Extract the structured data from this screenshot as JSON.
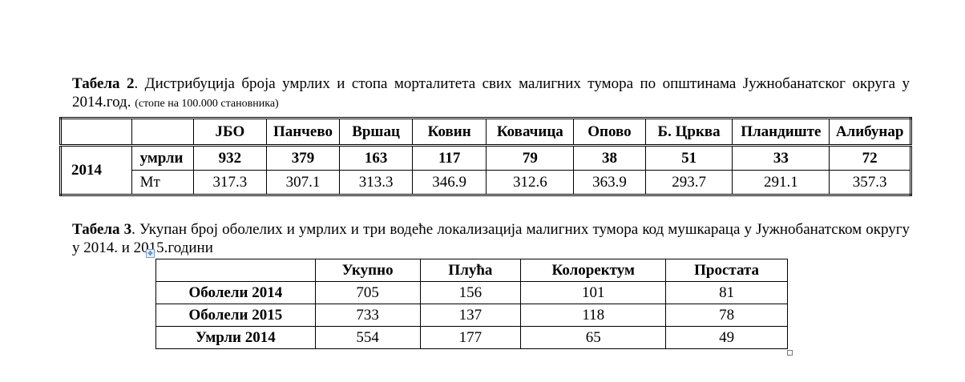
{
  "table2": {
    "caption_label": "Табела 2",
    "caption_text": ". Дистрибуција броја умрлих и стопа морталитета свих малигних тумора по општинама Јужнобанатског округа у 2014.год.",
    "caption_note": "(стопе на 100.000 становника)",
    "columns": [
      "ЈБО",
      "Панчево",
      "Вршац",
      "Ковин",
      "Ковачица",
      "Опово",
      "Б. Црква",
      "Пландиште",
      "Алибунар"
    ],
    "year": "2014",
    "rows": [
      {
        "label": "умрли",
        "values": [
          "932",
          "379",
          "163",
          "117",
          "79",
          "38",
          "51",
          "33",
          "72"
        ]
      },
      {
        "label": "Мт",
        "values": [
          "317.3",
          "307.1",
          "313.3",
          "346.9",
          "312.6",
          "363.9",
          "293.7",
          "291.1",
          "357.3"
        ]
      }
    ]
  },
  "table3": {
    "caption_label": "Табела 3",
    "caption_text": ". Укупан број оболелих и умрлих и три водеће локализација малигних тумора код мушкараца у Јужнобанатском округу у 2014. и 2015.години",
    "columns": [
      "Укупно",
      "Плућа",
      "Колоректум",
      "Простата"
    ],
    "rows": [
      {
        "label": "Оболели 2014",
        "values": [
          "705",
          "156",
          "101",
          "81"
        ]
      },
      {
        "label": "Оболели 2015",
        "values": [
          "733",
          "137",
          "118",
          "78"
        ]
      },
      {
        "label": "Умрли 2014",
        "values": [
          "554",
          "177",
          "65",
          "49"
        ]
      }
    ]
  }
}
